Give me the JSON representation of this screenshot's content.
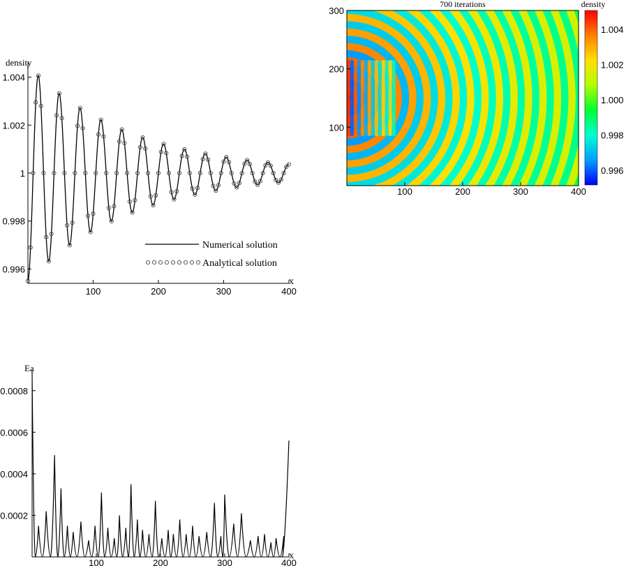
{
  "chart_data": [
    {
      "type": "line",
      "id": "density-profile",
      "ylabel": "density",
      "xlabel": "x",
      "xlim": [
        0,
        400
      ],
      "ylim": [
        0.9954,
        1.0046
      ],
      "x_ticks": [
        100,
        200,
        300,
        400
      ],
      "x_tick_labels": [
        "100",
        "200",
        "300",
        "400"
      ],
      "y_ticks": [
        0.996,
        0.998,
        1.0,
        1.002,
        1.004
      ],
      "y_tick_labels": [
        "0.996",
        "0.998",
        "1",
        "1.002",
        "1.004"
      ],
      "series": [
        {
          "name": "Numerical solution",
          "style": "line",
          "color": "#000000"
        },
        {
          "name": "Analytical solution",
          "style": "circles",
          "color": "#000000"
        }
      ],
      "model": {
        "wavelength": 32,
        "amplitude": 0.0045,
        "decay": 0.0063,
        "phase_shift": 8
      },
      "legend_position": "lower-right",
      "grid": false
    },
    {
      "type": "heatmap",
      "id": "density-field",
      "title": "700 iterations",
      "colorbar_label": "density",
      "xlim": [
        0,
        400
      ],
      "ylim": [
        0,
        300
      ],
      "x_ticks": [
        100,
        200,
        300,
        400
      ],
      "x_tick_labels": [
        "100",
        "200",
        "300",
        "400"
      ],
      "y_ticks": [
        100,
        200,
        300
      ],
      "y_tick_labels": [
        "100",
        "200",
        "300"
      ],
      "color_range": [
        0.9952,
        1.0051
      ],
      "colorbar_ticks": [
        0.996,
        0.998,
        1.0,
        1.002,
        1.004
      ],
      "colorbar_tick_labels": [
        "0.996",
        "0.998",
        "1.000",
        "1.002",
        "1.004"
      ],
      "colormap": [
        "#0000ff",
        "#00a0ff",
        "#00ffd0",
        "#00ff30",
        "#b0ff00",
        "#ffe000",
        "#ff8000",
        "#ff0000"
      ],
      "source_center": [
        0,
        150
      ],
      "wavelength": 25,
      "grid": false
    },
    {
      "type": "line",
      "id": "error-profile",
      "ylabel": "Ea",
      "xlabel": "x",
      "xlim": [
        0,
        400
      ],
      "ylim": [
        0,
        0.0009
      ],
      "x_ticks": [
        100,
        200,
        300,
        400
      ],
      "x_tick_labels": [
        "100",
        "200",
        "300",
        "400"
      ],
      "y_ticks": [
        0.0002,
        0.0004,
        0.0006,
        0.0008
      ],
      "y_tick_labels": [
        "0.0002",
        "0.0004",
        "0.0006",
        "0.0008"
      ],
      "series": [
        {
          "style": "line",
          "color": "#000000",
          "peaks": [
            [
              0,
              0.00089
            ],
            [
              10,
              0.00015
            ],
            [
              22,
              0.00022
            ],
            [
              35,
              0.00049
            ],
            [
              45,
              0.00033
            ],
            [
              55,
              0.00015
            ],
            [
              64,
              0.00012
            ],
            [
              76,
              0.00017
            ],
            [
              88,
              8e-05
            ],
            [
              98,
              0.00015
            ],
            [
              108,
              0.00031
            ],
            [
              118,
              0.00014
            ],
            [
              128,
              9e-05
            ],
            [
              136,
              0.0002
            ],
            [
              146,
              0.00014
            ],
            [
              154,
              0.00035
            ],
            [
              164,
              0.00018
            ],
            [
              172,
              0.00013
            ],
            [
              182,
              0.00011
            ],
            [
              192,
              0.00027
            ],
            [
              202,
              9e-05
            ],
            [
              212,
              0.00013
            ],
            [
              220,
              0.00011
            ],
            [
              230,
              0.00018
            ],
            [
              240,
              0.00011
            ],
            [
              250,
              0.00015
            ],
            [
              260,
              0.0001
            ],
            [
              272,
              0.00012
            ],
            [
              284,
              0.00026
            ],
            [
              294,
              0.0001
            ],
            [
              300,
              0.0003
            ],
            [
              314,
              0.00016
            ],
            [
              326,
              0.00021
            ],
            [
              340,
              8e-05
            ],
            [
              352,
              0.0001
            ],
            [
              362,
              0.00011
            ],
            [
              372,
              7e-05
            ],
            [
              380,
              9e-05
            ],
            [
              392,
              0.0001
            ]
          ],
          "end_rise": [
            [
              390,
              0.0
            ],
            [
              400,
              0.00056
            ]
          ]
        }
      ],
      "grid": false
    }
  ]
}
